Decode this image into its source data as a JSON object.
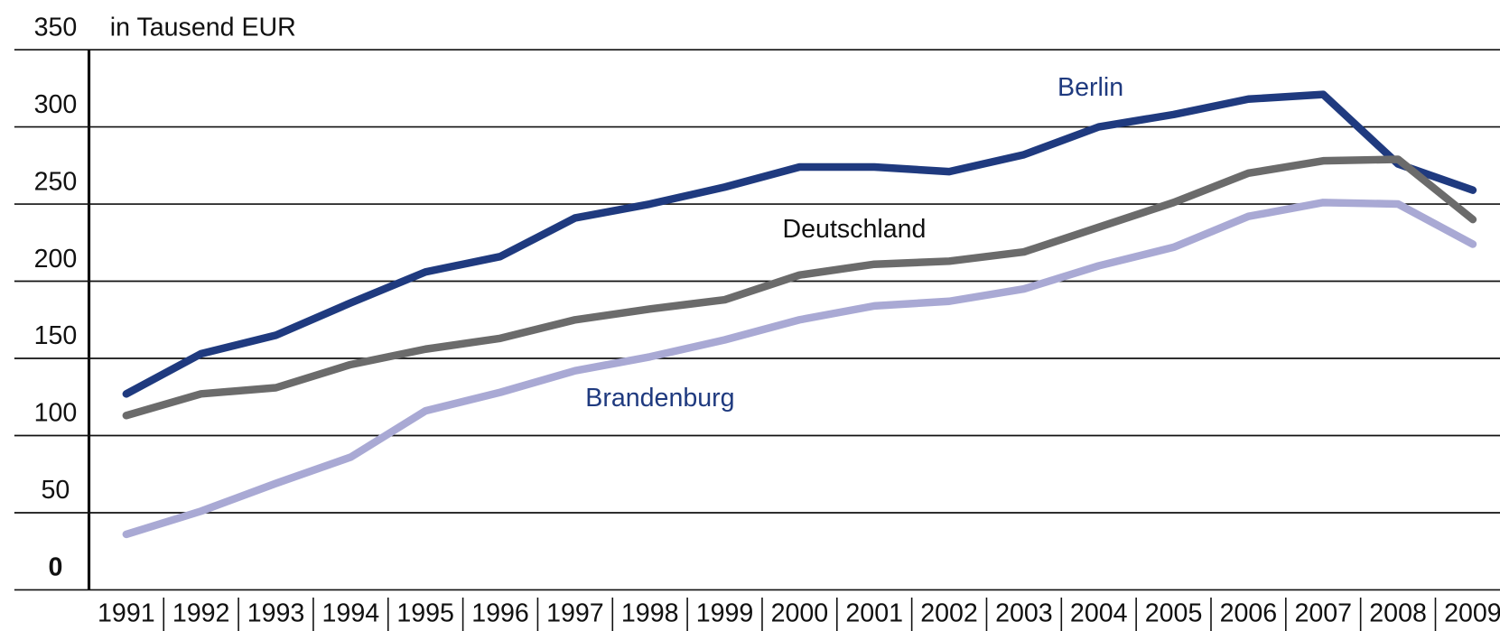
{
  "chart_data": {
    "type": "line",
    "y_label": "in Tausend EUR",
    "categories": [
      "1991",
      "1992",
      "1993",
      "1994",
      "1995",
      "1996",
      "1997",
      "1998",
      "1999",
      "2000",
      "2001",
      "2002",
      "2003",
      "2004",
      "2005",
      "2006",
      "2007",
      "2008",
      "2009"
    ],
    "series": [
      {
        "name": "Berlin",
        "color": "#1f3a7f",
        "values": [
          127,
          153,
          165,
          186,
          206,
          216,
          241,
          250,
          261,
          274,
          274,
          271,
          282,
          300,
          308,
          318,
          321,
          276,
          259
        ]
      },
      {
        "name": "Deutschland",
        "color": "#6b6b6b",
        "values": [
          113,
          127,
          131,
          146,
          156,
          163,
          175,
          182,
          188,
          204,
          211,
          213,
          219,
          235,
          251,
          270,
          278,
          279,
          240
        ]
      },
      {
        "name": "Brandenburg",
        "color": "#a9a9d4",
        "values": [
          36,
          51,
          69,
          86,
          116,
          128,
          142,
          151,
          162,
          175,
          184,
          187,
          195,
          210,
          222,
          242,
          251,
          250,
          224
        ]
      }
    ],
    "ylim": [
      0,
      350
    ],
    "yticks": [
      0,
      50,
      100,
      150,
      200,
      250,
      300,
      350
    ],
    "grid": true
  }
}
